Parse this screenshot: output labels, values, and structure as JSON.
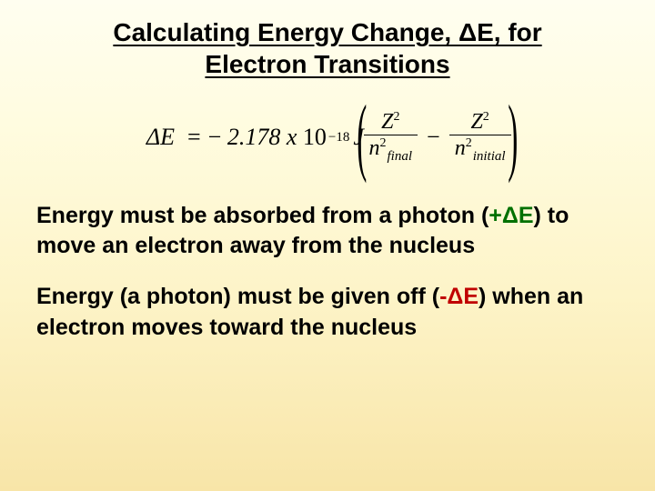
{
  "title_line1": "Calculating Energy Change, ΔE, for",
  "title_line2": "Electron Transitions",
  "formula": {
    "delta_e": "ΔE",
    "equals": "=",
    "minus": "−",
    "coeff": "2.178",
    "times": "x",
    "base": "10",
    "exp": "−18",
    "unit": "J",
    "Z": "Z",
    "sq": "2",
    "n": "n",
    "sub_final": "final",
    "sub_initial": "initial",
    "frac_minus": "−"
  },
  "para1": {
    "pre": "Energy must be absorbed from a photon (",
    "pde": "+ΔE",
    "post": ") to move an electron away from the nucleus"
  },
  "para2": {
    "pre": "Energy (a photon) must be given off (",
    "nde": "-ΔE",
    "post": ") when an electron moves toward the nucleus"
  },
  "colors": {
    "plus": "#007000",
    "neg": "#c00000",
    "text": "#000000"
  }
}
